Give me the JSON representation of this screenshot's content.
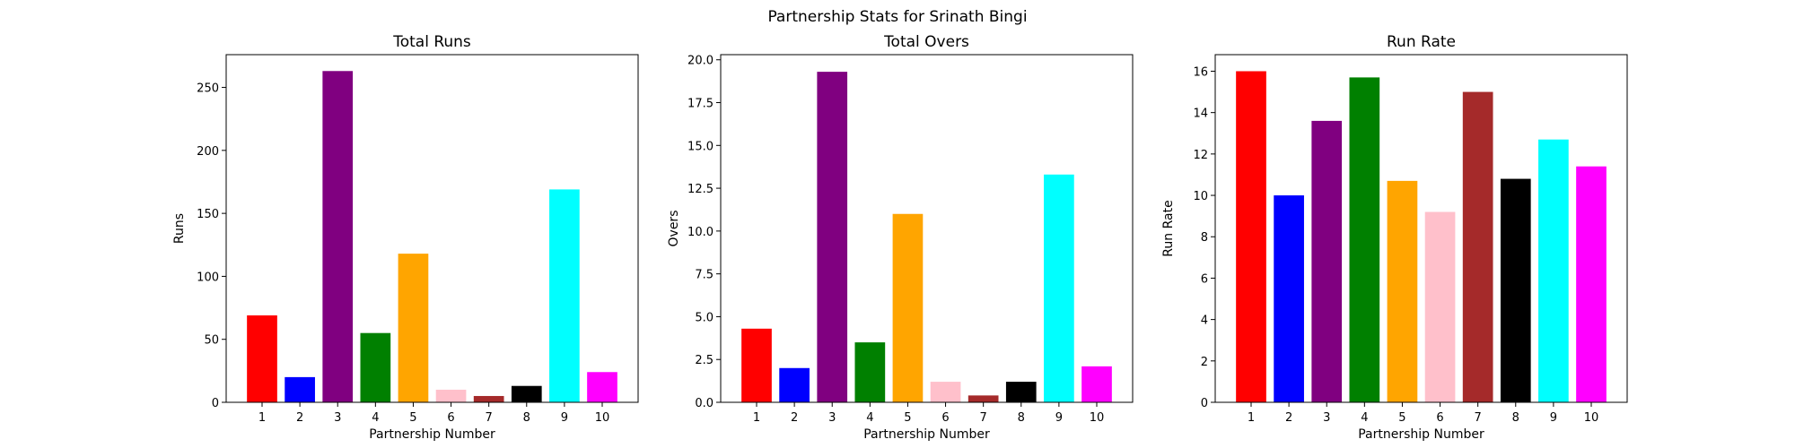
{
  "figure": {
    "suptitle": "Partnership Stats for Srinath Bingi"
  },
  "chart_data": [
    {
      "type": "bar",
      "title": "Total Runs",
      "xlabel": "Partnership Number",
      "ylabel": "Runs",
      "categories": [
        "1",
        "2",
        "3",
        "4",
        "5",
        "6",
        "7",
        "8",
        "9",
        "10"
      ],
      "values": [
        69,
        20,
        263,
        55,
        118,
        10,
        5,
        13,
        169,
        24
      ],
      "colors": [
        "#ff0000",
        "#0000ff",
        "#800080",
        "#008000",
        "#ffa500",
        "#ffc0cb",
        "#a52a2a",
        "#000000",
        "#00ffff",
        "#ff00ff"
      ],
      "ylim": [
        0,
        276
      ],
      "yticks": [
        0,
        50,
        100,
        150,
        200,
        250
      ],
      "ytick_labels": [
        "0",
        "50",
        "100",
        "150",
        "200",
        "250"
      ],
      "grid": false
    },
    {
      "type": "bar",
      "title": "Total Overs",
      "xlabel": "Partnership Number",
      "ylabel": "Overs",
      "categories": [
        "1",
        "2",
        "3",
        "4",
        "5",
        "6",
        "7",
        "8",
        "9",
        "10"
      ],
      "values": [
        4.3,
        2.0,
        19.3,
        3.5,
        11.0,
        1.2,
        0.4,
        1.2,
        13.3,
        2.1
      ],
      "colors": [
        "#ff0000",
        "#0000ff",
        "#800080",
        "#008000",
        "#ffa500",
        "#ffc0cb",
        "#a52a2a",
        "#000000",
        "#00ffff",
        "#ff00ff"
      ],
      "ylim": [
        0,
        20.3
      ],
      "yticks": [
        0,
        2.5,
        5,
        7.5,
        10,
        12.5,
        15,
        17.5,
        20
      ],
      "ytick_labels": [
        "0.0",
        "2.5",
        "5.0",
        "7.5",
        "10.0",
        "12.5",
        "15.0",
        "17.5",
        "20.0"
      ],
      "grid": false
    },
    {
      "type": "bar",
      "title": "Run Rate",
      "xlabel": "Partnership Number",
      "ylabel": "Run Rate",
      "categories": [
        "1",
        "2",
        "3",
        "4",
        "5",
        "6",
        "7",
        "8",
        "9",
        "10"
      ],
      "values": [
        16.0,
        10.0,
        13.6,
        15.7,
        10.7,
        9.2,
        15.0,
        10.8,
        12.7,
        11.4
      ],
      "colors": [
        "#ff0000",
        "#0000ff",
        "#800080",
        "#008000",
        "#ffa500",
        "#ffc0cb",
        "#a52a2a",
        "#000000",
        "#00ffff",
        "#ff00ff"
      ],
      "ylim": [
        0,
        16.8
      ],
      "yticks": [
        0,
        2,
        4,
        6,
        8,
        10,
        12,
        14,
        16
      ],
      "ytick_labels": [
        "0",
        "2",
        "4",
        "6",
        "8",
        "10",
        "12",
        "14",
        "16"
      ],
      "grid": false
    }
  ]
}
